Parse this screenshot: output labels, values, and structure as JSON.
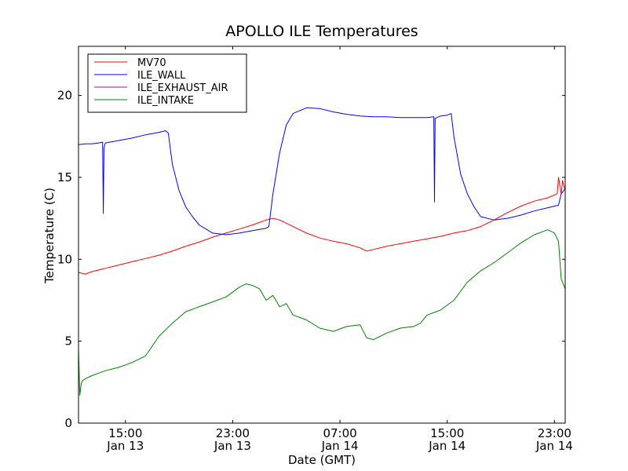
{
  "chart_data": {
    "type": "line",
    "title": "APOLLO ILE Temperatures",
    "xlabel": "Date (GMT)",
    "ylabel": "Temperature (C)",
    "x_unit": "hours since Jan 13 11:30 GMT",
    "xlim": [
      0,
      36.3
    ],
    "ylim": [
      0,
      23
    ],
    "grid": false,
    "legend_position": "top-left",
    "x_ticks": [
      {
        "value": 3.5,
        "time": "15:00",
        "date": "Jan 13"
      },
      {
        "value": 11.5,
        "time": "23:00",
        "date": "Jan 13"
      },
      {
        "value": 19.5,
        "time": "07:00",
        "date": "Jan 14"
      },
      {
        "value": 27.5,
        "time": "15:00",
        "date": "Jan 14"
      },
      {
        "value": 35.5,
        "time": "23:00",
        "date": "Jan 14"
      }
    ],
    "y_ticks": [
      0,
      5,
      10,
      15,
      20
    ],
    "series": [
      {
        "name": "MV70",
        "color": "#ff0000",
        "x": [
          0,
          0.5,
          1,
          2,
          3,
          4,
          5,
          6,
          7,
          8,
          9,
          10,
          11,
          12,
          13,
          14,
          14.5,
          15,
          16,
          17,
          18,
          19,
          20,
          21,
          21.5,
          22,
          23,
          24,
          25,
          26,
          27,
          28,
          29,
          30,
          31,
          32,
          33,
          34,
          35,
          35.7,
          35.8,
          36.0,
          36.1,
          36.3
        ],
        "y": [
          9.2,
          9.1,
          9.25,
          9.45,
          9.65,
          9.85,
          10.05,
          10.25,
          10.5,
          10.8,
          11.05,
          11.35,
          11.6,
          11.85,
          12.1,
          12.4,
          12.5,
          12.4,
          12.0,
          11.6,
          11.3,
          11.1,
          10.95,
          10.7,
          10.5,
          10.6,
          10.8,
          10.95,
          11.1,
          11.25,
          11.4,
          11.6,
          11.75,
          12.0,
          12.4,
          12.85,
          13.25,
          13.55,
          13.75,
          14.0,
          15.0,
          14.0,
          14.8,
          14.2
        ]
      },
      {
        "name": "ILE_WALL",
        "color": "#0000ff",
        "x": [
          0,
          0.5,
          1,
          1.5,
          1.8,
          1.85,
          1.9,
          2.0,
          3,
          4,
          5,
          6,
          6.5,
          6.7,
          7,
          7.5,
          8,
          8.5,
          9,
          10,
          11,
          12,
          13,
          14,
          14.2,
          14.5,
          15,
          15.5,
          16,
          17,
          18,
          19,
          20,
          21,
          22,
          23,
          24,
          25,
          26,
          26.5,
          26.55,
          26.6,
          27,
          27.5,
          27.8,
          28,
          28.5,
          29,
          29.5,
          30,
          31,
          32,
          33,
          34,
          35,
          35.8,
          36.0,
          36.3
        ],
        "y": [
          17.0,
          17.05,
          17.05,
          17.1,
          17.15,
          12.8,
          16.8,
          17.1,
          17.25,
          17.4,
          17.6,
          17.75,
          17.85,
          17.7,
          15.8,
          14.2,
          13.2,
          12.6,
          12.1,
          11.6,
          11.5,
          11.6,
          11.75,
          11.9,
          12.0,
          14.0,
          16.5,
          18.2,
          18.9,
          19.25,
          19.2,
          19.0,
          18.85,
          18.75,
          18.7,
          18.7,
          18.65,
          18.65,
          18.65,
          18.7,
          13.5,
          18.6,
          18.75,
          18.8,
          18.9,
          17.5,
          15.2,
          14.0,
          13.2,
          12.6,
          12.4,
          12.5,
          12.7,
          12.95,
          13.15,
          13.3,
          14.0,
          14.3
        ]
      },
      {
        "name": "ILE_EXHAUST_AIR",
        "color": "#bf00bf",
        "x": [],
        "y": []
      },
      {
        "name": "ILE_INTAKE",
        "color": "#008000",
        "x": [
          0,
          0.1,
          0.2,
          0.3,
          0.5,
          1,
          2,
          3,
          4,
          5,
          6,
          7,
          8,
          9,
          10,
          11,
          12,
          12.5,
          13,
          13.5,
          14,
          14.5,
          15,
          15.5,
          16,
          17,
          18,
          19,
          20,
          21,
          21.5,
          22,
          23,
          24,
          25,
          25.5,
          26,
          27,
          28,
          29,
          30,
          31,
          32,
          33,
          34,
          35,
          35.5,
          35.8,
          36.0,
          36.3
        ],
        "y": [
          4.5,
          1.7,
          2.4,
          2.6,
          2.7,
          2.9,
          3.2,
          3.4,
          3.7,
          4.1,
          5.3,
          6.1,
          6.8,
          7.1,
          7.4,
          7.7,
          8.3,
          8.5,
          8.4,
          8.2,
          7.5,
          7.8,
          7.1,
          7.3,
          6.6,
          6.3,
          5.8,
          5.6,
          5.9,
          6.0,
          5.2,
          5.1,
          5.5,
          5.8,
          5.9,
          6.1,
          6.6,
          6.9,
          7.5,
          8.6,
          9.3,
          9.8,
          10.4,
          11.0,
          11.5,
          11.8,
          11.6,
          11.1,
          8.8,
          8.2
        ]
      }
    ]
  }
}
